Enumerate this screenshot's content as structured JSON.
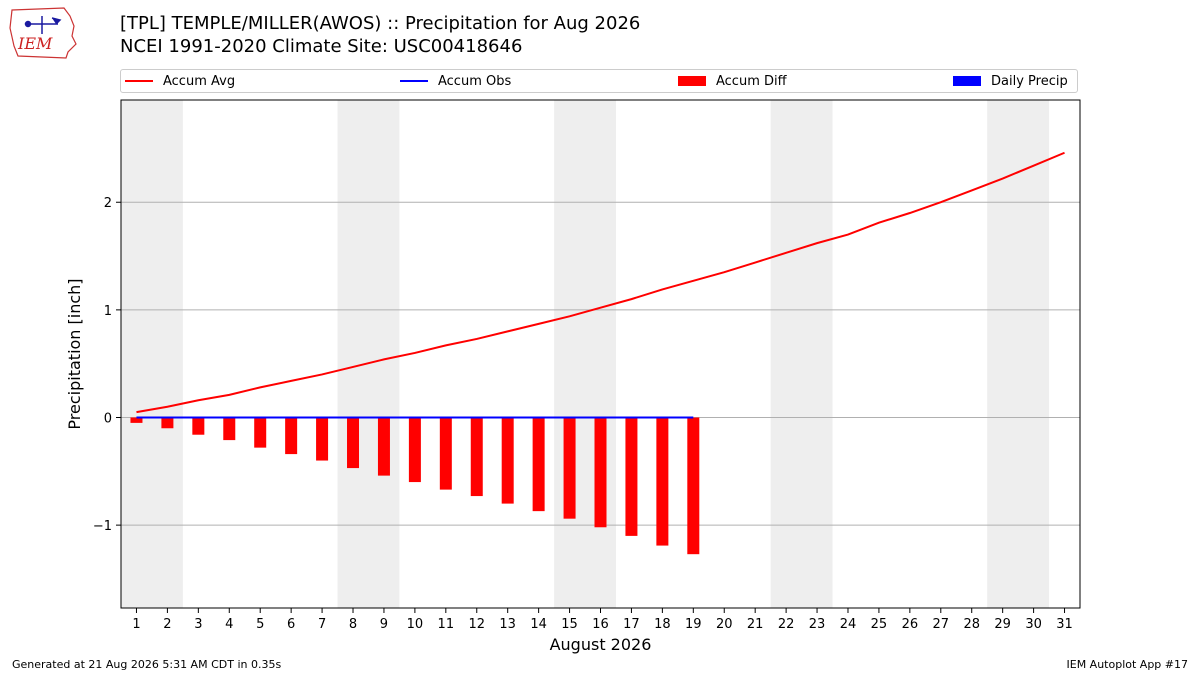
{
  "header": {
    "title_line1": "[TPL] TEMPLE/MILLER(AWOS) :: Precipitation for Aug 2026",
    "title_line2": "NCEI 1991-2020 Climate Site: USC00418646",
    "logo_text": "IEM"
  },
  "colors": {
    "accum_avg": "#ff0000",
    "accum_obs": "#0000ff",
    "accum_diff": "#ff0000",
    "daily_precip": "#0000ff",
    "weekend_band": "#eeeeee",
    "grid": "#b0b0b0"
  },
  "legend": {
    "accum_avg": "Accum Avg",
    "accum_obs": "Accum Obs",
    "accum_diff": "Accum Diff",
    "daily_precip": "Daily Precip",
    "placement": "top, above plot, single row"
  },
  "footer": {
    "generated": "Generated at 21 Aug 2026 5:31 AM CDT in 0.35s",
    "app": "IEM Autoplot App #17"
  },
  "chart_data": {
    "type": "line",
    "title": "[TPL] TEMPLE/MILLER(AWOS) :: Precipitation for Aug 2026",
    "subtitle": "NCEI 1991-2020 Climate Site: USC00418646",
    "xlabel": "August 2026",
    "ylabel": "Precipitation [inch]",
    "xlim": [
      0.5,
      31.5
    ],
    "ylim": [
      -1.77,
      2.95
    ],
    "xticks": [
      1,
      2,
      3,
      4,
      5,
      6,
      7,
      8,
      9,
      10,
      11,
      12,
      13,
      14,
      15,
      16,
      17,
      18,
      19,
      20,
      21,
      22,
      23,
      24,
      25,
      26,
      27,
      28,
      29,
      30,
      31
    ],
    "yticks": [
      -1,
      0,
      1,
      2
    ],
    "ytick_labels": [
      "−1",
      "0",
      "1",
      "2"
    ],
    "grid": "horizontal",
    "weekend_bands": [
      [
        0.5,
        2.5
      ],
      [
        7.5,
        9.5
      ],
      [
        14.5,
        16.5
      ],
      [
        21.5,
        23.5
      ],
      [
        28.5,
        30.5
      ]
    ],
    "series": [
      {
        "name": "Accum Avg",
        "type": "line",
        "x": [
          1,
          2,
          3,
          4,
          5,
          6,
          7,
          8,
          9,
          10,
          11,
          12,
          13,
          14,
          15,
          16,
          17,
          18,
          19,
          20,
          21,
          22,
          23,
          24,
          25,
          26,
          27,
          28,
          29,
          30,
          31
        ],
        "values": [
          0.05,
          0.1,
          0.16,
          0.21,
          0.28,
          0.34,
          0.4,
          0.47,
          0.54,
          0.6,
          0.67,
          0.73,
          0.8,
          0.87,
          0.94,
          1.02,
          1.1,
          1.19,
          1.27,
          1.35,
          1.44,
          1.53,
          1.62,
          1.7,
          1.81,
          1.9,
          2.0,
          2.11,
          2.22,
          2.34,
          2.46
        ]
      },
      {
        "name": "Accum Obs",
        "type": "line",
        "x": [
          1,
          2,
          3,
          4,
          5,
          6,
          7,
          8,
          9,
          10,
          11,
          12,
          13,
          14,
          15,
          16,
          17,
          18,
          19
        ],
        "values": [
          0,
          0,
          0,
          0,
          0,
          0,
          0,
          0,
          0,
          0,
          0,
          0,
          0,
          0,
          0,
          0,
          0,
          0,
          0
        ]
      },
      {
        "name": "Accum Diff",
        "type": "bar",
        "x": [
          1,
          2,
          3,
          4,
          5,
          6,
          7,
          8,
          9,
          10,
          11,
          12,
          13,
          14,
          15,
          16,
          17,
          18,
          19
        ],
        "values": [
          -0.05,
          -0.1,
          -0.16,
          -0.21,
          -0.28,
          -0.34,
          -0.4,
          -0.47,
          -0.54,
          -0.6,
          -0.67,
          -0.73,
          -0.8,
          -0.87,
          -0.94,
          -1.02,
          -1.1,
          -1.19,
          -1.27
        ]
      },
      {
        "name": "Daily Precip",
        "type": "bar",
        "x": [
          1,
          2,
          3,
          4,
          5,
          6,
          7,
          8,
          9,
          10,
          11,
          12,
          13,
          14,
          15,
          16,
          17,
          18,
          19
        ],
        "values": [
          0,
          0,
          0,
          0,
          0,
          0,
          0,
          0,
          0,
          0,
          0,
          0,
          0,
          0,
          0,
          0,
          0,
          0,
          0
        ]
      }
    ]
  }
}
